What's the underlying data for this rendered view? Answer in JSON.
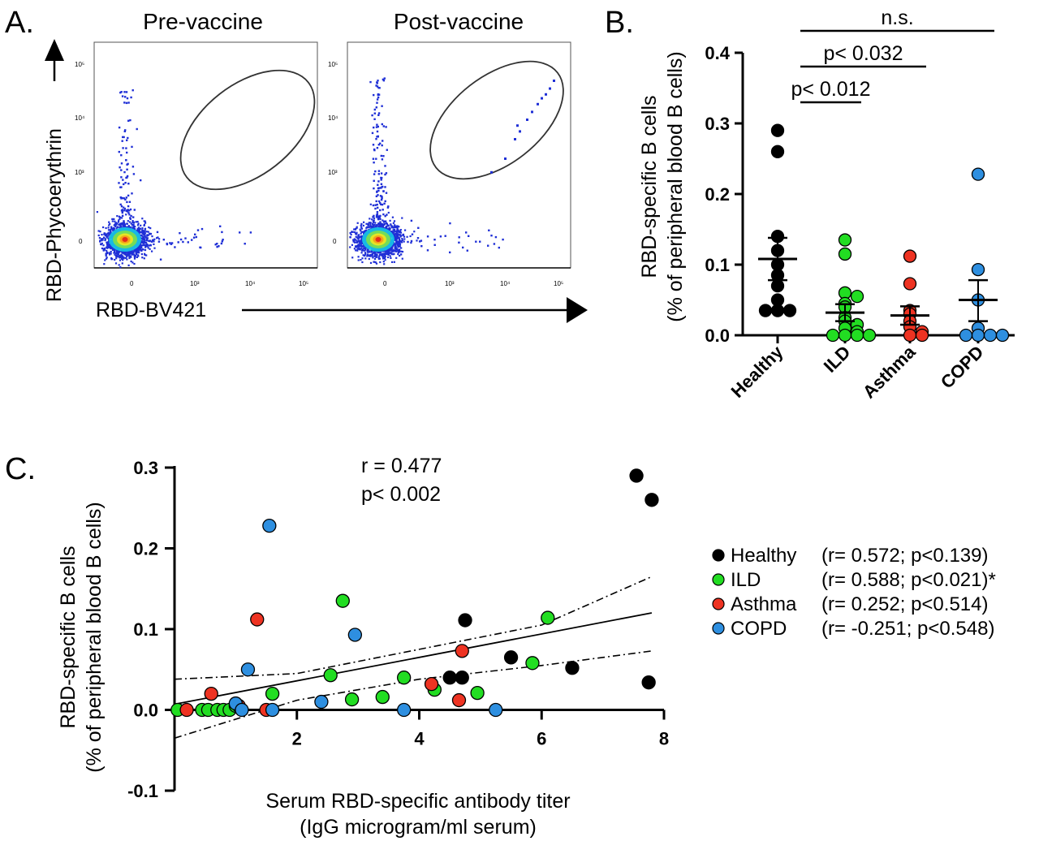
{
  "panels": {
    "a_letter": "A.",
    "b_letter": "B.",
    "c_letter": "C."
  },
  "chart_data": [
    {
      "type": "scatter",
      "panel": "A",
      "subtitles": [
        "Pre-vaccine",
        "Post-vaccine"
      ],
      "xlabel": "RBD-BV421",
      "ylabel": "RBD-Phycoerythrin",
      "x_ticks": [
        "0",
        "10³",
        "10⁴",
        "10⁵"
      ],
      "y_ticks": [
        "0",
        "10³",
        "10⁴",
        "10⁵"
      ],
      "scale": "log (biexponential)",
      "pre_gate_points": [],
      "post_gate_points": [
        [
          1.38,
          0.33
        ],
        [
          1.55,
          0.4
        ],
        [
          1.67,
          0.5
        ],
        [
          1.73,
          0.54
        ],
        [
          1.82,
          0.6
        ],
        [
          1.88,
          0.64
        ],
        [
          1.95,
          0.68
        ],
        [
          2.0,
          0.71
        ],
        [
          2.05,
          0.73
        ],
        [
          2.1,
          0.76
        ],
        [
          2.15,
          0.8
        ],
        [
          1.7,
          0.57
        ]
      ],
      "colors": {
        "dots": "#1f2fd6",
        "core": "#e0201c",
        "gate": "#333333"
      }
    },
    {
      "type": "scatter",
      "panel": "B",
      "ylabel_lines": [
        "RBD-specific B cells",
        "(% of peripheral blood B cells)"
      ],
      "categories": [
        "Healthy",
        "ILD",
        "Asthma",
        "COPD"
      ],
      "ylim": [
        0.0,
        0.4
      ],
      "y_ticks": [
        "0.0",
        "0.1",
        "0.2",
        "0.3",
        "0.4"
      ],
      "series": [
        {
          "name": "Healthy",
          "color": "#000000",
          "values": [
            0.29,
            0.26,
            0.14,
            0.12,
            0.1,
            0.085,
            0.07,
            0.05,
            0.035,
            0.035,
            0.035
          ],
          "mean": 0.108,
          "sem": [
            0.078,
            0.138
          ]
        },
        {
          "name": "ILD",
          "color": "#22dd22",
          "values": [
            0.135,
            0.115,
            0.06,
            0.055,
            0.045,
            0.04,
            0.025,
            0.02,
            0.015,
            0.01,
            0.005,
            0.0,
            0.0,
            0.0,
            0.0
          ],
          "mean": 0.032,
          "sem": [
            0.02,
            0.044
          ]
        },
        {
          "name": "Asthma",
          "color": "#ee3322",
          "values": [
            0.112,
            0.073,
            0.035,
            0.03,
            0.02,
            0.012,
            0.005,
            0.0,
            0.0
          ],
          "mean": 0.028,
          "sem": [
            0.015,
            0.041
          ]
        },
        {
          "name": "COPD",
          "color": "#2e8fe0",
          "values": [
            0.228,
            0.093,
            0.05,
            0.01,
            0.0,
            0.0,
            0.0,
            0.0
          ],
          "mean": 0.05,
          "sem": [
            0.02,
            0.078
          ]
        }
      ],
      "comparisons": [
        {
          "label": "n.s.",
          "from": "Healthy",
          "to": "COPD"
        },
        {
          "label": "p< 0.032",
          "from": "Healthy",
          "to": "Asthma"
        },
        {
          "label": "p< 0.012",
          "from": "Healthy",
          "to": "ILD"
        }
      ]
    },
    {
      "type": "scatter",
      "panel": "C",
      "ylabel_lines": [
        "RBD-specific B cells",
        "(% of peripheral blood B cells)"
      ],
      "xlabel_lines": [
        "Serum RBD-specific antibody titer",
        "(IgG microgram/ml serum)"
      ],
      "xlim": [
        0,
        8
      ],
      "ylim": [
        -0.1,
        0.3
      ],
      "x_ticks": [
        "2",
        "4",
        "6",
        "8"
      ],
      "y_ticks": [
        "-0.1",
        "0.0",
        "0.1",
        "0.2",
        "0.3"
      ],
      "stats": [
        "r = 0.477",
        "p< 0.002"
      ],
      "fit": {
        "slope": 0.0145,
        "intercept": 0.007,
        "ci_lower": [
          [
            0,
            -0.035
          ],
          [
            2,
            0.012
          ],
          [
            4,
            0.038
          ],
          [
            6,
            0.055
          ],
          [
            7.8,
            0.073
          ]
        ],
        "ci_upper": [
          [
            0,
            0.038
          ],
          [
            2,
            0.045
          ],
          [
            4,
            0.075
          ],
          [
            6,
            0.105
          ],
          [
            7.8,
            0.165
          ]
        ]
      },
      "legend": [
        {
          "name": "Healthy",
          "stat": "(r= 0.572; p<0.139)",
          "color": "#000000"
        },
        {
          "name": "ILD",
          "stat": "(r= 0.588; p<0.021)*",
          "color": "#22dd22"
        },
        {
          "name": "Asthma",
          "stat": "(r= 0.252; p<0.514)",
          "color": "#ee3322"
        },
        {
          "name": "COPD",
          "stat": "(r= -0.251; p<0.548)",
          "color": "#2e8fe0"
        }
      ],
      "series": [
        {
          "name": "Healthy",
          "color": "#000000",
          "x": [
            7.55,
            7.8,
            4.75,
            4.5,
            4.7,
            5.5,
            6.5,
            7.75
          ],
          "y": [
            0.29,
            0.26,
            0.111,
            0.04,
            0.04,
            0.065,
            0.052,
            0.034
          ]
        },
        {
          "name": "ILD",
          "color": "#22dd22",
          "x": [
            0.05,
            0.45,
            0.55,
            0.7,
            0.8,
            0.9,
            1.0,
            1.6,
            2.55,
            2.75,
            2.9,
            3.4,
            3.75,
            4.25,
            4.95,
            5.85,
            6.1
          ],
          "y": [
            0.0,
            0.0,
            0.0,
            0.0,
            0.0,
            0.0,
            0.005,
            0.02,
            0.043,
            0.135,
            0.013,
            0.016,
            0.04,
            0.025,
            0.021,
            0.058,
            0.114
          ]
        },
        {
          "name": "Asthma",
          "color": "#ee3322",
          "x": [
            0.2,
            0.6,
            1.05,
            1.35,
            1.5,
            4.2,
            4.65,
            4.7
          ],
          "y": [
            0.0,
            0.02,
            0.005,
            0.112,
            0.0,
            0.032,
            0.012,
            0.073
          ]
        },
        {
          "name": "COPD",
          "color": "#2e8fe0",
          "x": [
            1.0,
            1.1,
            1.2,
            1.55,
            1.6,
            2.95,
            2.4,
            3.75,
            5.25
          ],
          "y": [
            0.008,
            0.0,
            0.05,
            0.228,
            0.0,
            0.093,
            0.01,
            0.0,
            0.0
          ]
        }
      ]
    }
  ]
}
